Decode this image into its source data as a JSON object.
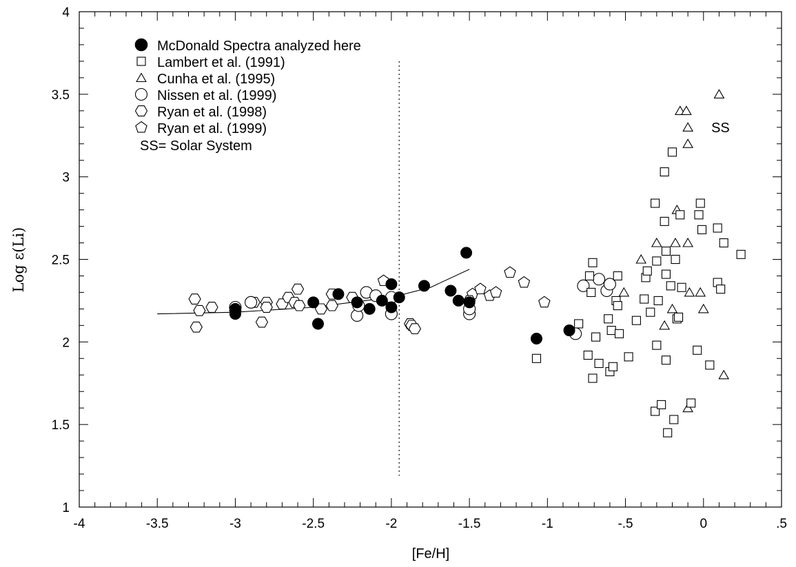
{
  "chart_data": {
    "type": "scatter",
    "xlabel": "[Fe/H]",
    "ylabel": "Log ε(Li)",
    "xlim": [
      -4,
      0.5
    ],
    "ylim": [
      1,
      4
    ],
    "x_ticks": [
      -4,
      -3.5,
      -3,
      -2.5,
      -2,
      -1.5,
      -1,
      -0.5,
      0,
      0.5
    ],
    "x_tick_labels": [
      "-4",
      "-3.5",
      "-3",
      "-2.5",
      "-2",
      "-1.5",
      "-1",
      "-.5",
      "0",
      ".5"
    ],
    "y_ticks": [
      1,
      1.5,
      2,
      2.5,
      3,
      3.5,
      4
    ],
    "y_tick_labels": [
      "1",
      "1.5",
      "2",
      "2.5",
      "3",
      "3.5",
      "4"
    ],
    "x_minor_step": 0.1,
    "y_minor_step": 0.1,
    "grid": false,
    "legend_position": "top-left",
    "legend_note": "SS= Solar System",
    "annotations": [
      {
        "text": "SS",
        "x": 0.05,
        "y": 3.3
      }
    ],
    "vertical_line": {
      "x": -1.95,
      "y_range": [
        1.19,
        3.7
      ],
      "style": "dotted"
    },
    "fit_curve": {
      "x": [
        -3.5,
        -3.0,
        -2.5,
        -2.0,
        -1.75,
        -1.5
      ],
      "y": [
        2.17,
        2.18,
        2.21,
        2.27,
        2.33,
        2.44
      ]
    },
    "series": [
      {
        "name": "McDonald Spectra analyzed here",
        "marker": "filled-circle",
        "points": [
          [
            -3.0,
            2.17
          ],
          [
            -3.0,
            2.2
          ],
          [
            -2.5,
            2.24
          ],
          [
            -2.47,
            2.11
          ],
          [
            -2.34,
            2.29
          ],
          [
            -2.22,
            2.24
          ],
          [
            -2.14,
            2.2
          ],
          [
            -2.06,
            2.25
          ],
          [
            -2.0,
            2.35
          ],
          [
            -2.0,
            2.21
          ],
          [
            -1.95,
            2.27
          ],
          [
            -1.79,
            2.34
          ],
          [
            -1.62,
            2.31
          ],
          [
            -1.57,
            2.25
          ],
          [
            -1.52,
            2.54
          ],
          [
            -1.5,
            2.24
          ],
          [
            -1.07,
            2.02
          ],
          [
            -0.86,
            2.07
          ]
        ]
      },
      {
        "name": "Lambert et al. (1991)",
        "marker": "open-square",
        "points": [
          [
            -1.07,
            1.9
          ],
          [
            -0.8,
            2.11
          ],
          [
            -0.74,
            1.92
          ],
          [
            -0.73,
            2.4
          ],
          [
            -0.72,
            2.3
          ],
          [
            -0.71,
            2.48
          ],
          [
            -0.71,
            1.78
          ],
          [
            -0.69,
            2.03
          ],
          [
            -0.67,
            1.87
          ],
          [
            -0.61,
            2.14
          ],
          [
            -0.6,
            1.82
          ],
          [
            -0.59,
            2.07
          ],
          [
            -0.58,
            1.85
          ],
          [
            -0.56,
            2.25
          ],
          [
            -0.55,
            2.4
          ],
          [
            -0.55,
            2.22
          ],
          [
            -0.54,
            2.05
          ],
          [
            -0.48,
            1.91
          ],
          [
            -0.43,
            2.13
          ],
          [
            -0.38,
            2.26
          ],
          [
            -0.37,
            2.39
          ],
          [
            -0.36,
            2.43
          ],
          [
            -0.34,
            2.18
          ],
          [
            -0.31,
            2.84
          ],
          [
            -0.31,
            1.58
          ],
          [
            -0.3,
            2.49
          ],
          [
            -0.3,
            1.98
          ],
          [
            -0.29,
            2.25
          ],
          [
            -0.27,
            1.62
          ],
          [
            -0.25,
            3.03
          ],
          [
            -0.25,
            2.73
          ],
          [
            -0.24,
            2.55
          ],
          [
            -0.24,
            2.41
          ],
          [
            -0.24,
            1.89
          ],
          [
            -0.23,
            1.45
          ],
          [
            -0.21,
            2.34
          ],
          [
            -0.2,
            3.15
          ],
          [
            -0.19,
            1.53
          ],
          [
            -0.18,
            2.5
          ],
          [
            -0.17,
            2.14
          ],
          [
            -0.16,
            2.15
          ],
          [
            -0.15,
            2.77
          ],
          [
            -0.14,
            2.33
          ],
          [
            -0.08,
            1.63
          ],
          [
            -0.04,
            1.95
          ],
          [
            -0.03,
            2.77
          ],
          [
            -0.02,
            2.84
          ],
          [
            -0.01,
            2.68
          ],
          [
            0.04,
            1.86
          ],
          [
            0.09,
            2.69
          ],
          [
            0.09,
            2.36
          ],
          [
            0.11,
            2.32
          ],
          [
            0.13,
            2.6
          ],
          [
            0.24,
            2.53
          ]
        ]
      },
      {
        "name": "Cunha et al. (1995)",
        "marker": "open-triangle",
        "points": [
          [
            -0.51,
            2.3
          ],
          [
            -0.4,
            2.5
          ],
          [
            -0.25,
            2.1
          ],
          [
            -0.3,
            2.6
          ],
          [
            -0.2,
            2.2
          ],
          [
            -0.18,
            2.6
          ],
          [
            -0.17,
            2.8
          ],
          [
            -0.15,
            3.4
          ],
          [
            -0.11,
            3.4
          ],
          [
            -0.1,
            3.3
          ],
          [
            -0.1,
            3.2
          ],
          [
            -0.1,
            2.6
          ],
          [
            -0.09,
            2.3
          ],
          [
            -0.1,
            1.6
          ],
          [
            -0.02,
            2.3
          ],
          [
            0.0,
            2.2
          ],
          [
            0.1,
            3.5
          ],
          [
            0.13,
            1.8
          ]
        ]
      },
      {
        "name": "Nissen et al. (1999)",
        "marker": "open-circle",
        "points": [
          [
            -3.0,
            2.21
          ],
          [
            -2.9,
            2.24
          ],
          [
            -2.22,
            2.16
          ],
          [
            -2.21,
            2.22
          ],
          [
            -2.16,
            2.3
          ],
          [
            -2.1,
            2.28
          ],
          [
            -2.0,
            2.27
          ],
          [
            -2.0,
            2.17
          ],
          [
            -1.5,
            2.17
          ],
          [
            -1.5,
            2.2
          ],
          [
            -0.82,
            2.05
          ],
          [
            -0.77,
            2.34
          ],
          [
            -0.67,
            2.38
          ],
          [
            -0.62,
            2.31
          ],
          [
            -0.6,
            2.35
          ]
        ]
      },
      {
        "name": "Ryan et al. (1998)",
        "marker": "open-hexagon",
        "points": [
          [
            -3.26,
            2.26
          ],
          [
            -3.25,
            2.09
          ],
          [
            -3.23,
            2.19
          ],
          [
            -3.15,
            2.21
          ],
          [
            -3.0,
            2.19
          ],
          [
            -2.88,
            2.24
          ],
          [
            -2.83,
            2.12
          ],
          [
            -2.8,
            2.24
          ],
          [
            -2.8,
            2.21
          ],
          [
            -2.7,
            2.23
          ],
          [
            -2.66,
            2.27
          ],
          [
            -2.62,
            2.24
          ],
          [
            -2.6,
            2.32
          ],
          [
            -2.59,
            2.22
          ],
          [
            -2.45,
            2.2
          ],
          [
            -2.38,
            2.29
          ],
          [
            -2.38,
            2.22
          ],
          [
            -2.25,
            2.27
          ],
          [
            -1.88,
            2.11
          ],
          [
            -1.87,
            2.1
          ],
          [
            -1.85,
            2.08
          ],
          [
            -1.5,
            2.25
          ]
        ]
      },
      {
        "name": "Ryan et al. (1999)",
        "marker": "open-pentagon",
        "points": [
          [
            -2.05,
            2.37
          ],
          [
            -1.48,
            2.29
          ],
          [
            -1.43,
            2.32
          ],
          [
            -1.37,
            2.28
          ],
          [
            -1.33,
            2.3
          ],
          [
            -1.24,
            2.42
          ],
          [
            -1.15,
            2.36
          ],
          [
            -1.02,
            2.24
          ]
        ]
      }
    ]
  }
}
